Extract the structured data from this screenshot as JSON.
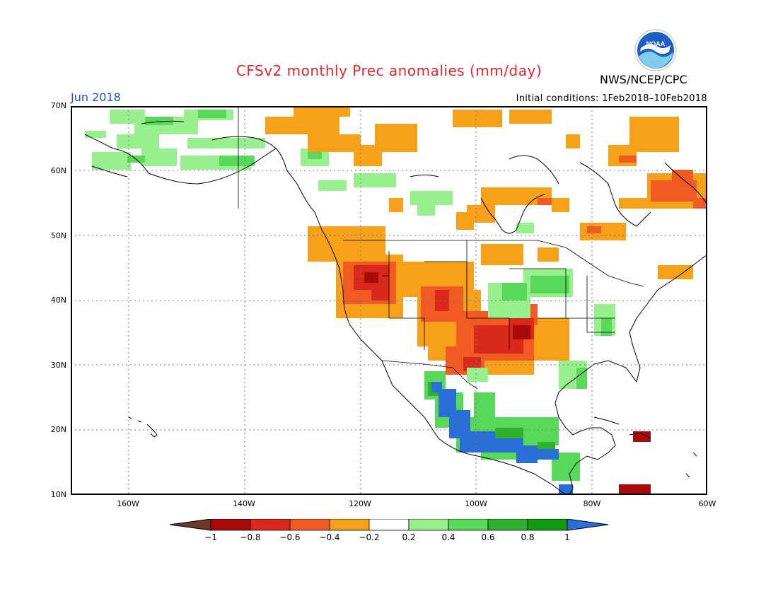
{
  "title": "CFSv2 monthly Prec anomalies (mm/day)",
  "agency": "NWS/NCEP/CPC",
  "logo_text": "NOAA",
  "month": "Jun 2018",
  "initial_conditions": "Initial conditions: 1Feb2018–10Feb2018",
  "lat_labels": [
    "70N",
    "60N",
    "50N",
    "40N",
    "30N",
    "20N",
    "10N"
  ],
  "lon_labels": [
    "160W",
    "140W",
    "120W",
    "100W",
    "80W",
    "60W"
  ],
  "colorbar": {
    "labels": [
      "−1",
      "−0.8",
      "−0.6",
      "−0.4",
      "−0.2",
      "0.2",
      "0.4",
      "0.6",
      "0.8",
      "1"
    ],
    "colors": [
      "#6b3a2a",
      "#a90a0a",
      "#d9281c",
      "#f15a22",
      "#f7a11a",
      "#ffffff",
      "#97ef8e",
      "#59d95a",
      "#2fb12f",
      "#139a13",
      "#2a6fd6"
    ]
  },
  "map_extent": {
    "lon": [
      -170,
      -60
    ],
    "lat": [
      10,
      70
    ]
  }
}
